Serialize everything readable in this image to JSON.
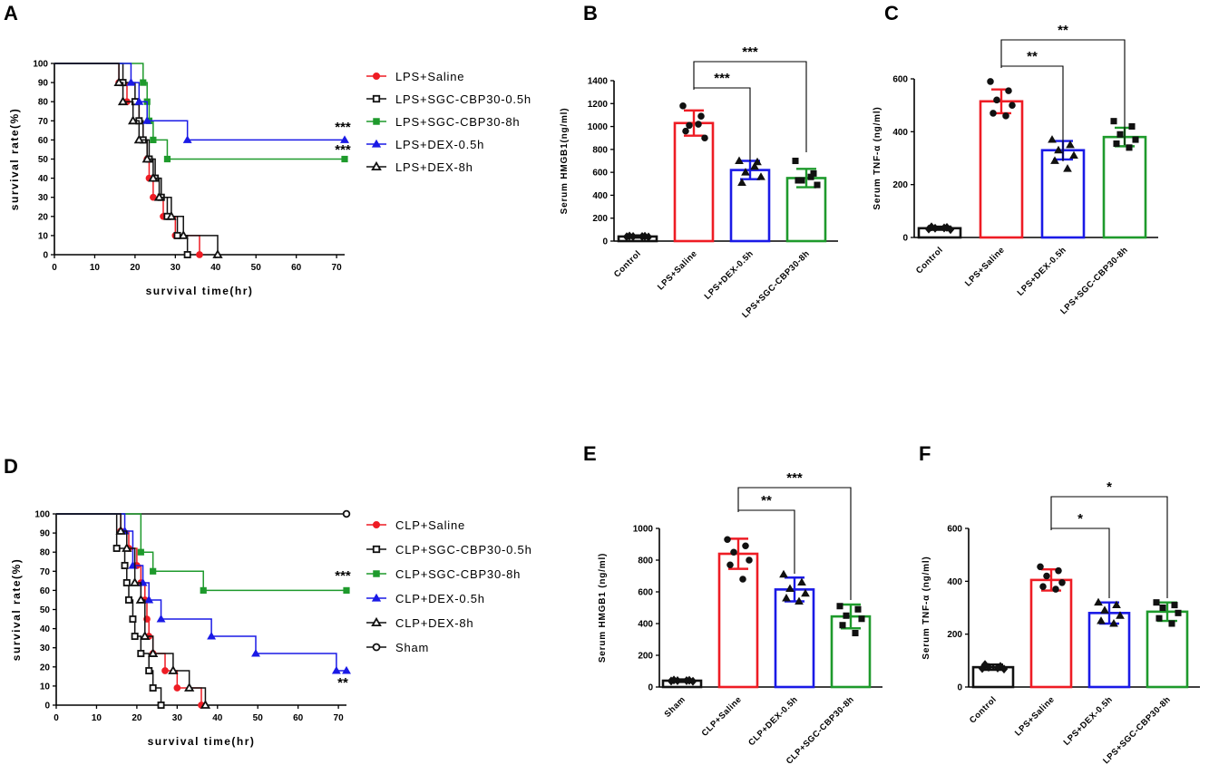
{
  "figure": {
    "colors": {
      "red": "#ee1c24",
      "black": "#111111",
      "green": "#1e9a2c",
      "blue": "#1a1ae6",
      "box": "#222222"
    },
    "panels": {
      "A": {
        "label": "A"
      },
      "B": {
        "label": "B"
      },
      "C": {
        "label": "C"
      },
      "D": {
        "label": "D"
      },
      "E": {
        "label": "E"
      },
      "F": {
        "label": "F"
      }
    }
  },
  "chart_data": [
    {
      "id": "A",
      "type": "line",
      "subtype": "kaplan-meier",
      "xlabel": "survival time(hr)",
      "ylabel": "survival rate(%)",
      "xlim": [
        0,
        72
      ],
      "ylim": [
        0,
        100
      ],
      "xticks": [
        0,
        10,
        20,
        30,
        40,
        50,
        60,
        70
      ],
      "yticks": [
        0,
        10,
        20,
        30,
        40,
        50,
        60,
        70,
        80,
        90,
        100
      ],
      "legend": [
        {
          "name": "LPS+Saline",
          "color": "red",
          "marker": "circle-filled"
        },
        {
          "name": "LPS+SGC-CBP30-0.5h",
          "color": "black",
          "marker": "square-open"
        },
        {
          "name": "LPS+SGC-CBP30-8h",
          "color": "green",
          "marker": "square-filled"
        },
        {
          "name": "LPS+DEX-0.5h",
          "color": "blue",
          "marker": "triangle-filled"
        },
        {
          "name": "LPS+DEX-8h",
          "color": "black",
          "marker": "triangle-open"
        }
      ],
      "series": [
        {
          "name": "LPS+Saline",
          "color": "red",
          "marker": "circle-filled",
          "steps": [
            [
              16,
              90
            ],
            [
              18,
              80
            ],
            [
              21,
              70
            ],
            [
              22,
              60
            ],
            [
              23,
              50
            ],
            [
              23.5,
              40
            ],
            [
              24.5,
              30
            ],
            [
              27,
              20
            ],
            [
              30,
              10
            ],
            [
              36,
              0
            ]
          ]
        },
        {
          "name": "LPS+SGC-CBP30-0.5h",
          "color": "black",
          "marker": "square-open",
          "steps": [
            [
              17,
              90
            ],
            [
              20,
              80
            ],
            [
              21,
              70
            ],
            [
              22,
              60
            ],
            [
              23.5,
              50
            ],
            [
              25,
              40
            ],
            [
              26.5,
              30
            ],
            [
              28,
              20
            ],
            [
              30.5,
              10
            ],
            [
              33,
              0
            ]
          ]
        },
        {
          "name": "LPS+SGC-CBP30-8h",
          "color": "green",
          "marker": "square-filled",
          "steps": [
            [
              22,
              90
            ],
            [
              23,
              80
            ],
            [
              23.5,
              70
            ],
            [
              24.5,
              60
            ],
            [
              28,
              50
            ]
          ],
          "end": 72,
          "endMarker": true
        },
        {
          "name": "LPS+DEX-0.5h",
          "color": "blue",
          "marker": "triangle-filled",
          "steps": [
            [
              19,
              90
            ],
            [
              21,
              80
            ],
            [
              23,
              70
            ],
            [
              33,
              60
            ]
          ],
          "end": 72,
          "endMarker": true
        },
        {
          "name": "LPS+DEX-8h",
          "color": "black",
          "marker": "triangle-open",
          "steps": [
            [
              16,
              90
            ],
            [
              17,
              80
            ],
            [
              19.5,
              70
            ],
            [
              21,
              60
            ],
            [
              23,
              50
            ],
            [
              24.5,
              40
            ],
            [
              26,
              30
            ],
            [
              29,
              20
            ],
            [
              32,
              10
            ],
            [
              40.5,
              0
            ]
          ]
        }
      ],
      "annotations": [
        {
          "text": "***",
          "near": "LPS+DEX-0.5h"
        },
        {
          "text": "***",
          "near": "LPS+SGC-CBP30-8h"
        }
      ]
    },
    {
      "id": "B",
      "type": "bar",
      "ylabel": "Serum HMGB1(ng/ml)",
      "ylim": [
        0,
        1400
      ],
      "yticks": [
        0,
        200,
        400,
        600,
        800,
        1000,
        1200,
        1400
      ],
      "categories": [
        "Control",
        "LPS+Saline",
        "LPS+DEX-0.5h",
        "LPS+SGC-CBP30-8h"
      ],
      "colors": [
        "black",
        "red",
        "blue",
        "green"
      ],
      "values": [
        40,
        1030,
        620,
        550
      ],
      "errors": [
        10,
        110,
        80,
        80
      ],
      "points": [
        [
          38,
          42,
          40,
          36,
          44,
          40
        ],
        [
          1180,
          1090,
          1010,
          900,
          960,
          1020
        ],
        [
          700,
          690,
          600,
          560,
          510,
          650
        ],
        [
          700,
          590,
          530,
          490,
          530,
          560
        ]
      ],
      "markers": [
        "diamond",
        "circle",
        "triangle",
        "square"
      ],
      "comparisons": [
        {
          "from": 1,
          "to": 2,
          "label": "***",
          "level": 1
        },
        {
          "from": 1,
          "to": 3,
          "label": "***",
          "level": 2
        }
      ]
    },
    {
      "id": "C",
      "type": "bar",
      "ylabel": "Serum TNF-α (ng/ml)",
      "ylim": [
        0,
        600
      ],
      "yticks": [
        0,
        200,
        400,
        600
      ],
      "categories": [
        "Control",
        "LPS+Saline",
        "LPS+DEX-0.5h",
        "LPS+SGC-CBP30-8h"
      ],
      "colors": [
        "black",
        "red",
        "blue",
        "green"
      ],
      "values": [
        35,
        515,
        330,
        380
      ],
      "errors": [
        6,
        45,
        35,
        35
      ],
      "points": [
        [
          32,
          38,
          35,
          30,
          40,
          36
        ],
        [
          590,
          555,
          520,
          500,
          470,
          460
        ],
        [
          370,
          350,
          330,
          310,
          290,
          260
        ],
        [
          440,
          420,
          390,
          370,
          355,
          340
        ]
      ],
      "markers": [
        "diamond",
        "circle",
        "triangle",
        "square"
      ],
      "comparisons": [
        {
          "from": 1,
          "to": 2,
          "label": "**",
          "level": 1
        },
        {
          "from": 1,
          "to": 3,
          "label": "**",
          "level": 2
        }
      ]
    },
    {
      "id": "D",
      "type": "line",
      "subtype": "kaplan-meier",
      "xlabel": "survival time(hr)",
      "ylabel": "survival rate(%)",
      "xlim": [
        0,
        72
      ],
      "ylim": [
        0,
        100
      ],
      "xticks": [
        0,
        10,
        20,
        30,
        40,
        50,
        60,
        70
      ],
      "yticks": [
        0,
        10,
        20,
        30,
        40,
        50,
        60,
        70,
        80,
        90,
        100
      ],
      "legend": [
        {
          "name": "CLP+Saline",
          "color": "red",
          "marker": "circle-filled"
        },
        {
          "name": "CLP+SGC-CBP30-0.5h",
          "color": "black",
          "marker": "square-open"
        },
        {
          "name": "CLP+SGC-CBP30-8h",
          "color": "green",
          "marker": "square-filled"
        },
        {
          "name": "CLP+DEX-0.5h",
          "color": "blue",
          "marker": "triangle-filled"
        },
        {
          "name": "CLP+DEX-8h",
          "color": "black",
          "marker": "triangle-open"
        },
        {
          "name": "Sham",
          "color": "black",
          "marker": "circle-open"
        }
      ],
      "series": [
        {
          "name": "Sham",
          "color": "black",
          "marker": "circle-open",
          "steps": [],
          "end": 72,
          "endMarker": true,
          "startY": 100
        },
        {
          "name": "CLP+Saline",
          "color": "red",
          "marker": "circle-filled",
          "steps": [
            [
              16,
              91
            ],
            [
              18,
              82
            ],
            [
              20,
              73
            ],
            [
              21,
              64
            ],
            [
              22,
              55
            ],
            [
              22.5,
              45
            ],
            [
              23,
              36
            ],
            [
              24,
              27
            ],
            [
              27,
              18
            ],
            [
              30,
              9
            ],
            [
              36,
              0
            ]
          ]
        },
        {
          "name": "CLP+SGC-CBP30-0.5h",
          "color": "black",
          "marker": "square-open",
          "steps": [
            [
              15,
              82
            ],
            [
              17,
              73
            ],
            [
              17.5,
              64
            ],
            [
              18,
              55
            ],
            [
              19,
              45
            ],
            [
              19.5,
              36
            ],
            [
              21,
              27
            ],
            [
              23,
              18
            ],
            [
              24,
              9
            ],
            [
              26,
              0
            ]
          ]
        },
        {
          "name": "CLP+SGC-CBP30-8h",
          "color": "green",
          "marker": "square-filled",
          "steps": [
            [
              21,
              80
            ],
            [
              24,
              70
            ],
            [
              36.5,
              60
            ]
          ],
          "end": 72,
          "endMarker": true
        },
        {
          "name": "CLP+DEX-0.5h",
          "color": "blue",
          "marker": "triangle-filled",
          "steps": [
            [
              17,
              91
            ],
            [
              19,
              73
            ],
            [
              21.5,
              64
            ],
            [
              23,
              55
            ],
            [
              26,
              45
            ],
            [
              38.5,
              36
            ],
            [
              49.5,
              27
            ],
            [
              69.5,
              18
            ]
          ],
          "end": 72,
          "endMarker": true
        },
        {
          "name": "CLP+DEX-8h",
          "color": "black",
          "marker": "triangle-open",
          "steps": [
            [
              16,
              91
            ],
            [
              17.5,
              82
            ],
            [
              19.5,
              64
            ],
            [
              21,
              55
            ],
            [
              22,
              36
            ],
            [
              24,
              27
            ],
            [
              29,
              18
            ],
            [
              33,
              9
            ],
            [
              37,
              0
            ]
          ]
        }
      ],
      "annotations": [
        {
          "text": "***",
          "near": "CLP+SGC-CBP30-8h"
        },
        {
          "text": "**",
          "near": "CLP+DEX-0.5h"
        }
      ]
    },
    {
      "id": "E",
      "type": "bar",
      "ylabel": "Serum HMGB1 (ng/ml)",
      "ylim": [
        0,
        1000
      ],
      "yticks": [
        0,
        200,
        400,
        600,
        800,
        1000
      ],
      "categories": [
        "Sham",
        "CLP+Saline",
        "CLP+DEX-0.5h",
        "CLP+SGC-CBP30-8h"
      ],
      "colors": [
        "black",
        "red",
        "blue",
        "green"
      ],
      "values": [
        40,
        840,
        615,
        445
      ],
      "errors": [
        8,
        95,
        75,
        75
      ],
      "points": [
        [
          38,
          42,
          40,
          36,
          44,
          40
        ],
        [
          930,
          890,
          850,
          800,
          770,
          680
        ],
        [
          710,
          660,
          620,
          590,
          560,
          540
        ],
        [
          510,
          490,
          450,
          430,
          390,
          340
        ]
      ],
      "markers": [
        "diamond",
        "circle",
        "triangle",
        "square"
      ],
      "comparisons": [
        {
          "from": 1,
          "to": 2,
          "label": "**",
          "level": 1
        },
        {
          "from": 1,
          "to": 3,
          "label": "***",
          "level": 2
        }
      ]
    },
    {
      "id": "F",
      "type": "bar",
      "ylabel": "Serum TNF-α (ng/ml)",
      "ylim": [
        0,
        600
      ],
      "yticks": [
        0,
        200,
        400,
        600
      ],
      "categories": [
        "Control",
        "LPS+Saline",
        "LPS+DEX-0.5h",
        "LPS+SGC-CBP30-8h"
      ],
      "colors": [
        "black",
        "red",
        "blue",
        "green"
      ],
      "values": [
        75,
        405,
        280,
        285
      ],
      "errors": [
        10,
        40,
        40,
        35
      ],
      "points": [
        [
          70,
          78,
          75,
          68,
          85,
          72
        ],
        [
          455,
          440,
          420,
          395,
          380,
          370
        ],
        [
          320,
          310,
          290,
          270,
          250,
          240
        ],
        [
          320,
          310,
          300,
          280,
          260,
          240
        ]
      ],
      "markers": [
        "diamond",
        "circle",
        "triangle",
        "square"
      ],
      "comparisons": [
        {
          "from": 1,
          "to": 2,
          "label": "*",
          "level": 1
        },
        {
          "from": 1,
          "to": 3,
          "label": "*",
          "level": 2
        }
      ]
    }
  ]
}
